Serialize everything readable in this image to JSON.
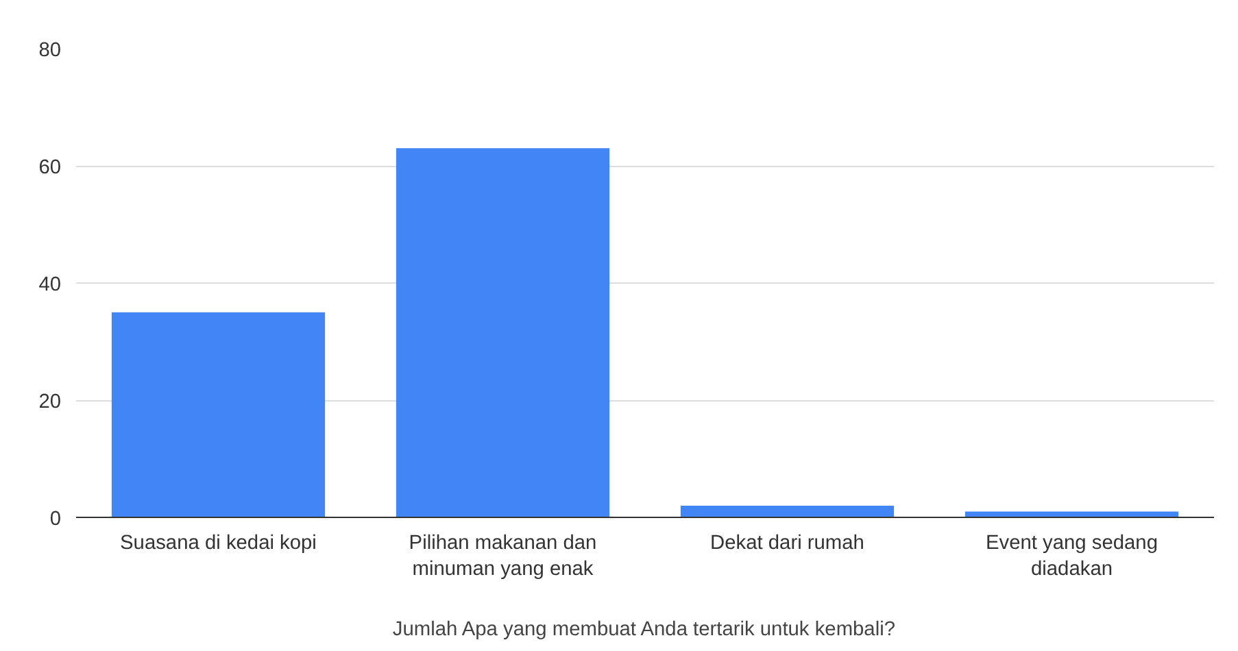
{
  "chart_data": {
    "type": "bar",
    "xlabel": "Jumlah Apa yang membuat Anda tertarik untuk kembali?",
    "categories": [
      "Suasana di kedai kopi",
      "Pilihan makanan dan minuman yang enak",
      "Dekat dari rumah",
      "Event yang sedang diadakan"
    ],
    "values": [
      35,
      63,
      2,
      1
    ],
    "color": "#4285f4",
    "ylim": [
      0,
      80
    ],
    "yticks": [
      0,
      20,
      40,
      60,
      80
    ],
    "grid": "y"
  }
}
